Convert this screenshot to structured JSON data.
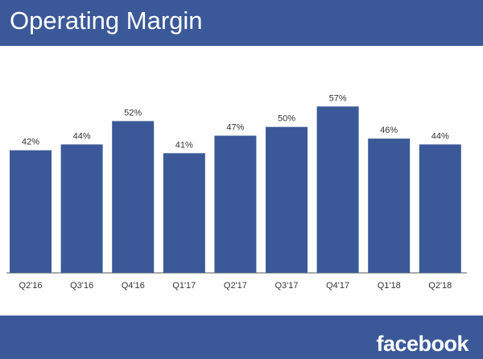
{
  "header": {
    "title": "Operating Margin"
  },
  "footer": {
    "logo_text": "facebook"
  },
  "colors": {
    "brand": "#3b5998",
    "bar": "#3b5998",
    "axis": "#555555"
  },
  "chart_data": {
    "type": "bar",
    "title": "Operating Margin",
    "categories": [
      "Q2'16",
      "Q3'16",
      "Q4'16",
      "Q1'17",
      "Q2'17",
      "Q3'17",
      "Q4'17",
      "Q1'18",
      "Q2'18"
    ],
    "values": [
      42,
      44,
      52,
      41,
      47,
      50,
      57,
      46,
      44
    ],
    "data_labels": [
      "42%",
      "44%",
      "52%",
      "41%",
      "47%",
      "50%",
      "57%",
      "46%",
      "44%"
    ],
    "unit": "%",
    "ylim": [
      0,
      75
    ],
    "grid": false,
    "legend": "none"
  }
}
